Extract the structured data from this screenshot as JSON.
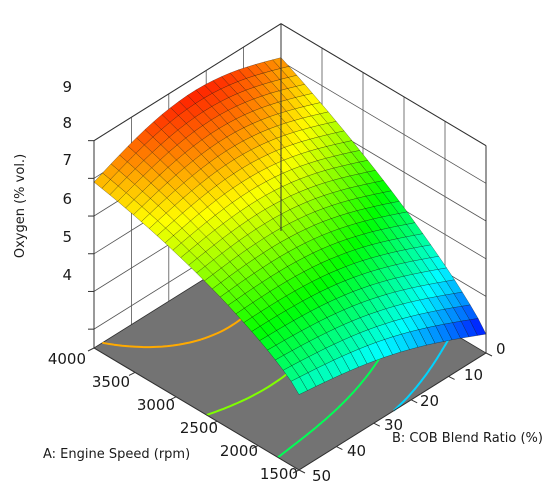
{
  "chart_data": {
    "type": "surface3d",
    "zlabel": "Oxygen (% vol.)",
    "xlabel": "A: Engine Speed (rpm)",
    "ylabel": "B: COB Blend Ratio (%)",
    "x_ticks": [
      "4000",
      "3500",
      "3000",
      "2500",
      "2000",
      "1500"
    ],
    "y_ticks": [
      "0",
      "10",
      "20",
      "30",
      "40",
      "50"
    ],
    "z_ticks": [
      "9",
      "8",
      "7",
      "6",
      "5",
      "4"
    ],
    "xlim": [
      1500,
      4000
    ],
    "ylim": [
      0,
      50
    ],
    "zlim": [
      3.5,
      9
    ],
    "surface_samples": [
      {
        "engine_speed": 4000,
        "blend": 50,
        "oxygen": 7.8
      },
      {
        "engine_speed": 4000,
        "blend": 0,
        "oxygen": 8.4
      },
      {
        "engine_speed": 1500,
        "blend": 0,
        "oxygen": 4.0
      },
      {
        "engine_speed": 1500,
        "blend": 50,
        "oxygen": 5.5
      }
    ],
    "contour_levels": [
      5,
      6,
      7,
      8
    ],
    "colormap": [
      "#0000ff",
      "#00ffff",
      "#00ff00",
      "#ffff00",
      "#ff0000"
    ],
    "floor_color": "#737373"
  }
}
